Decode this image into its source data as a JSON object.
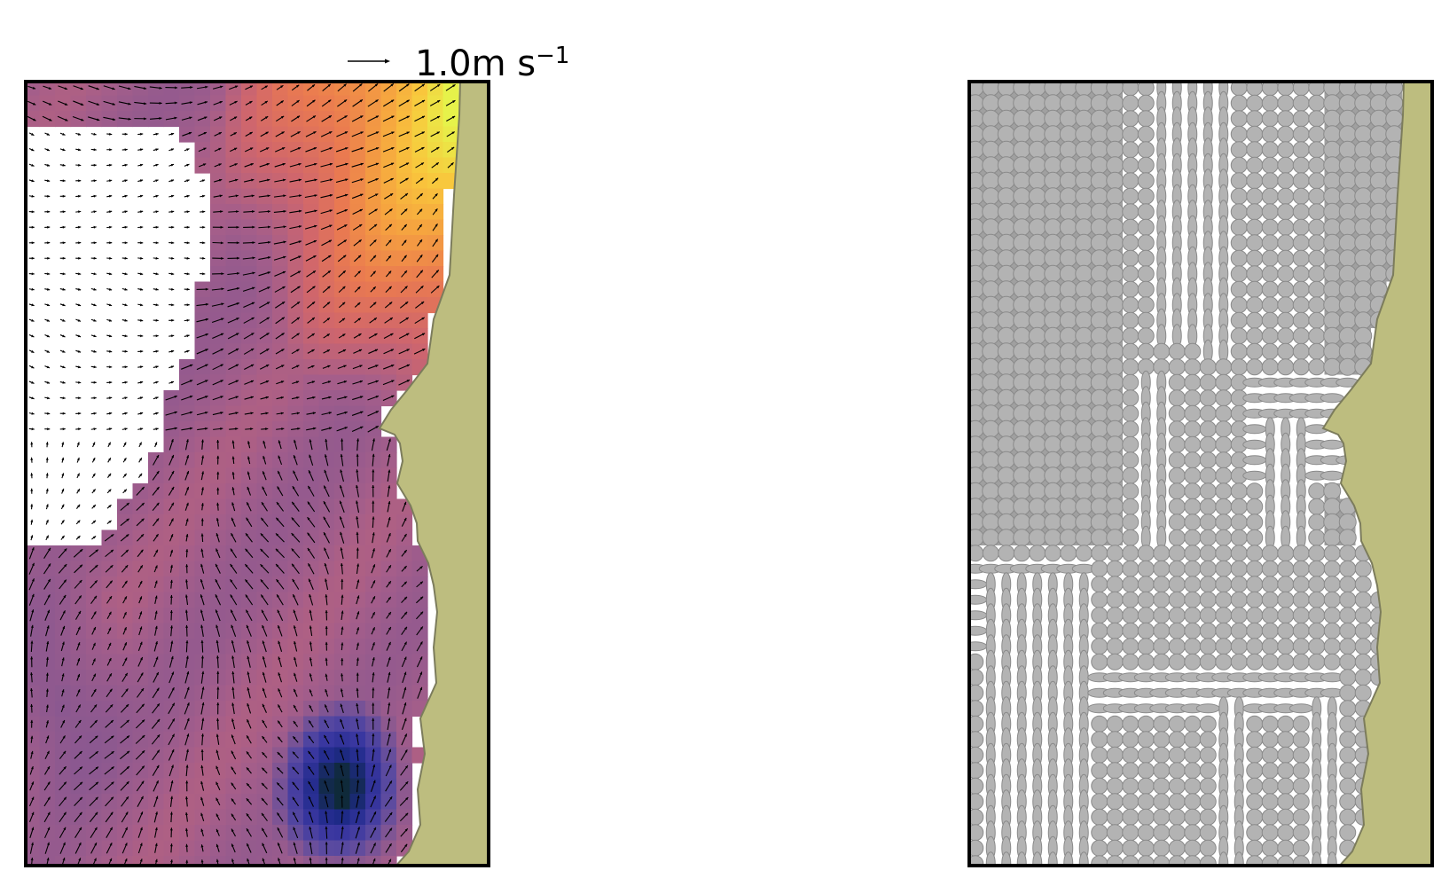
{
  "scale_legend": {
    "value_text": "1.0m s",
    "unit_exponent": "−1"
  },
  "colors": {
    "land": "#bdbd7f",
    "land_edge": "#7c7c5c",
    "frame": "#000000",
    "arrow": "#000000",
    "ellipse_fill": "#b3b3b3",
    "ellipse_edge": "#8a8a8a",
    "gap": "#ffffff",
    "colormap": [
      "#0f2a3a",
      "#1f2a8a",
      "#3a37a0",
      "#5a4aa0",
      "#8a5890",
      "#a55e8a",
      "#d0666c",
      "#ea7a50",
      "#f5a040",
      "#f9c63c",
      "#e6f24a"
    ]
  },
  "panels": [
    {
      "name": "velocity-field-panel"
    },
    {
      "name": "error-ellipse-panel"
    }
  ]
}
